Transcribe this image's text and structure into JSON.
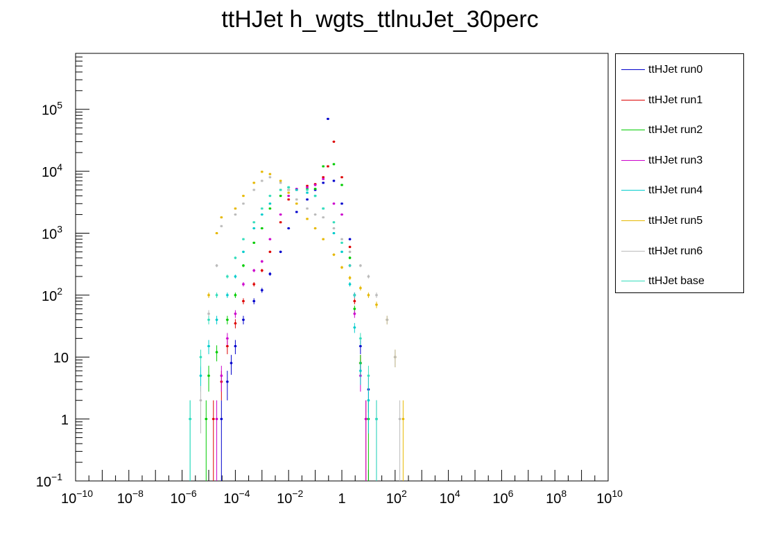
{
  "chart_data": {
    "type": "scatter",
    "title": "ttHJet h_wgts_ttlnuJet_30perc",
    "xlabel": "",
    "ylabel": "",
    "x_scale": "log",
    "y_scale": "log",
    "xlim": [
      1e-10,
      10000000000.0
    ],
    "ylim": [
      0.1,
      800000
    ],
    "x_tick_labels": [
      {
        "base": "10",
        "exp": "−10",
        "value": 1e-10
      },
      {
        "base": "10",
        "exp": "−8",
        "value": 1e-08
      },
      {
        "base": "10",
        "exp": "−6",
        "value": 1e-06
      },
      {
        "base": "10",
        "exp": "−4",
        "value": 0.0001
      },
      {
        "base": "10",
        "exp": "−2",
        "value": 0.01
      },
      {
        "base": "1",
        "exp": "",
        "value": 1
      },
      {
        "base": "10",
        "exp": "2",
        "value": 100.0
      },
      {
        "base": "10",
        "exp": "4",
        "value": 10000.0
      },
      {
        "base": "10",
        "exp": "6",
        "value": 1000000.0
      },
      {
        "base": "10",
        "exp": "8",
        "value": 100000000.0
      },
      {
        "base": "10",
        "exp": "10",
        "value": 10000000000.0
      }
    ],
    "y_tick_labels": [
      {
        "base": "10",
        "exp": "−1",
        "value": 0.1
      },
      {
        "base": "1",
        "exp": "",
        "value": 1
      },
      {
        "base": "10",
        "exp": "",
        "value": 10
      },
      {
        "base": "10",
        "exp": "2",
        "value": 100
      },
      {
        "base": "10",
        "exp": "3",
        "value": 1000
      },
      {
        "base": "10",
        "exp": "4",
        "value": 10000
      },
      {
        "base": "10",
        "exp": "5",
        "value": 100000
      }
    ],
    "grid": false,
    "legend_position": "right",
    "series": [
      {
        "name": "ttHJet run0",
        "color": "#0000cc",
        "points": [
          [
            3e-05,
            1
          ],
          [
            5e-05,
            4
          ],
          [
            7e-05,
            8
          ],
          [
            0.0001,
            15
          ],
          [
            0.0002,
            40
          ],
          [
            0.0005,
            80
          ],
          [
            0.001,
            120
          ],
          [
            0.002,
            220
          ],
          [
            0.005,
            500
          ],
          [
            0.01,
            1200
          ],
          [
            0.02,
            2200
          ],
          [
            0.05,
            3500
          ],
          [
            0.1,
            5000
          ],
          [
            0.2,
            6500
          ],
          [
            0.3,
            70000
          ],
          [
            0.5,
            7000
          ],
          [
            1,
            3000
          ],
          [
            2,
            800
          ],
          [
            3,
            100
          ],
          [
            5,
            15
          ],
          [
            10,
            3
          ],
          [
            20,
            1
          ]
        ]
      },
      {
        "name": "ttHJet run1",
        "color": "#dd0000",
        "points": [
          [
            1.5e-05,
            1
          ],
          [
            3e-05,
            4
          ],
          [
            5e-05,
            15
          ],
          [
            0.0001,
            35
          ],
          [
            0.0002,
            80
          ],
          [
            0.0005,
            150
          ],
          [
            0.001,
            250
          ],
          [
            0.002,
            500
          ],
          [
            0.005,
            1500
          ],
          [
            0.01,
            3500
          ],
          [
            0.02,
            5000
          ],
          [
            0.05,
            5800
          ],
          [
            0.1,
            6200
          ],
          [
            0.2,
            8000
          ],
          [
            0.3,
            12000
          ],
          [
            0.5,
            30000
          ],
          [
            1,
            8000
          ],
          [
            2,
            600
          ],
          [
            3,
            80
          ],
          [
            5,
            8
          ],
          [
            8,
            1
          ]
        ]
      },
      {
        "name": "ttHJet run2",
        "color": "#00cc00",
        "points": [
          [
            8e-06,
            1
          ],
          [
            1e-05,
            5
          ],
          [
            2e-05,
            12
          ],
          [
            5e-05,
            40
          ],
          [
            0.0001,
            100
          ],
          [
            0.0002,
            300
          ],
          [
            0.0005,
            700
          ],
          [
            0.001,
            1200
          ],
          [
            0.002,
            2500
          ],
          [
            0.005,
            4000
          ],
          [
            0.01,
            5000
          ],
          [
            0.05,
            5200
          ],
          [
            0.1,
            5200
          ],
          [
            0.2,
            12000
          ],
          [
            0.5,
            13000
          ],
          [
            1,
            6000
          ],
          [
            2,
            400
          ],
          [
            3,
            60
          ],
          [
            5,
            8
          ],
          [
            10,
            1
          ]
        ]
      },
      {
        "name": "ttHJet run3",
        "color": "#cc00cc",
        "points": [
          [
            2e-05,
            1
          ],
          [
            3e-05,
            5
          ],
          [
            5e-05,
            20
          ],
          [
            0.0001,
            50
          ],
          [
            0.0002,
            150
          ],
          [
            0.0005,
            250
          ],
          [
            0.001,
            350
          ],
          [
            0.002,
            800
          ],
          [
            0.005,
            2000
          ],
          [
            0.01,
            4000
          ],
          [
            0.02,
            5200
          ],
          [
            0.05,
            5500
          ],
          [
            0.1,
            6000
          ],
          [
            0.2,
            7500
          ],
          [
            0.5,
            3000
          ],
          [
            1,
            2000
          ],
          [
            2,
            300
          ],
          [
            3,
            50
          ],
          [
            5,
            5
          ],
          [
            8,
            1
          ]
        ]
      },
      {
        "name": "ttHJet run4",
        "color": "#00cccc",
        "points": [
          [
            2e-06,
            1
          ],
          [
            5e-06,
            5
          ],
          [
            1e-05,
            15
          ],
          [
            2e-05,
            40
          ],
          [
            5e-05,
            100
          ],
          [
            0.0001,
            200
          ],
          [
            0.0002,
            500
          ],
          [
            0.0005,
            1200
          ],
          [
            0.001,
            2000
          ],
          [
            0.002,
            3000
          ],
          [
            0.005,
            5000
          ],
          [
            0.01,
            5500
          ],
          [
            0.02,
            5000
          ],
          [
            0.05,
            4500
          ],
          [
            0.1,
            4000
          ],
          [
            0.2,
            2500
          ],
          [
            0.5,
            1000
          ],
          [
            1,
            500
          ],
          [
            2,
            150
          ],
          [
            3,
            30
          ],
          [
            5,
            6
          ],
          [
            10,
            2
          ],
          [
            20,
            1
          ]
        ]
      },
      {
        "name": "ttHJet run5",
        "color": "#e6b800",
        "points": [
          [
            1e-05,
            100
          ],
          [
            2e-05,
            1000
          ],
          [
            3e-05,
            1800
          ],
          [
            0.0001,
            2500
          ],
          [
            0.0002,
            4000
          ],
          [
            0.0005,
            6500
          ],
          [
            0.001,
            9800
          ],
          [
            0.002,
            9000
          ],
          [
            0.005,
            7000
          ],
          [
            0.01,
            4500
          ],
          [
            0.02,
            3000
          ],
          [
            0.05,
            1700
          ],
          [
            0.1,
            1200
          ],
          [
            0.2,
            800
          ],
          [
            0.5,
            450
          ],
          [
            1,
            280
          ],
          [
            2,
            190
          ],
          [
            5,
            130
          ],
          [
            10,
            100
          ],
          [
            20,
            70
          ],
          [
            50,
            40
          ],
          [
            100,
            10
          ],
          [
            200,
            1
          ]
        ]
      },
      {
        "name": "ttHJet run6",
        "color": "#bbbbbb",
        "points": [
          [
            5e-06,
            2
          ],
          [
            1e-05,
            50
          ],
          [
            2e-05,
            300
          ],
          [
            3e-05,
            1300
          ],
          [
            0.0001,
            2000
          ],
          [
            0.0002,
            3000
          ],
          [
            0.0005,
            5000
          ],
          [
            0.001,
            7000
          ],
          [
            0.002,
            8000
          ],
          [
            0.005,
            6500
          ],
          [
            0.01,
            5000
          ],
          [
            0.02,
            3500
          ],
          [
            0.05,
            2500
          ],
          [
            0.1,
            2000
          ],
          [
            0.2,
            1800
          ],
          [
            0.5,
            1200
          ],
          [
            1,
            800
          ],
          [
            2,
            500
          ],
          [
            5,
            300
          ],
          [
            10,
            200
          ],
          [
            20,
            100
          ],
          [
            50,
            40
          ],
          [
            100,
            10
          ],
          [
            150,
            1
          ]
        ]
      },
      {
        "name": "ttHJet base",
        "color": "#33ddbb",
        "points": [
          [
            2e-06,
            1
          ],
          [
            5e-06,
            10
          ],
          [
            1e-05,
            40
          ],
          [
            2e-05,
            100
          ],
          [
            5e-05,
            200
          ],
          [
            0.0001,
            400
          ],
          [
            0.0002,
            800
          ],
          [
            0.0005,
            1500
          ],
          [
            0.001,
            2500
          ],
          [
            0.002,
            4000
          ],
          [
            0.005,
            5000
          ],
          [
            0.01,
            5500
          ],
          [
            0.05,
            5000
          ],
          [
            0.1,
            4000
          ],
          [
            0.2,
            2500
          ],
          [
            0.5,
            1500
          ],
          [
            1,
            700
          ],
          [
            2,
            300
          ],
          [
            3,
            100
          ],
          [
            5,
            20
          ],
          [
            10,
            5
          ],
          [
            20,
            1
          ]
        ]
      }
    ]
  }
}
